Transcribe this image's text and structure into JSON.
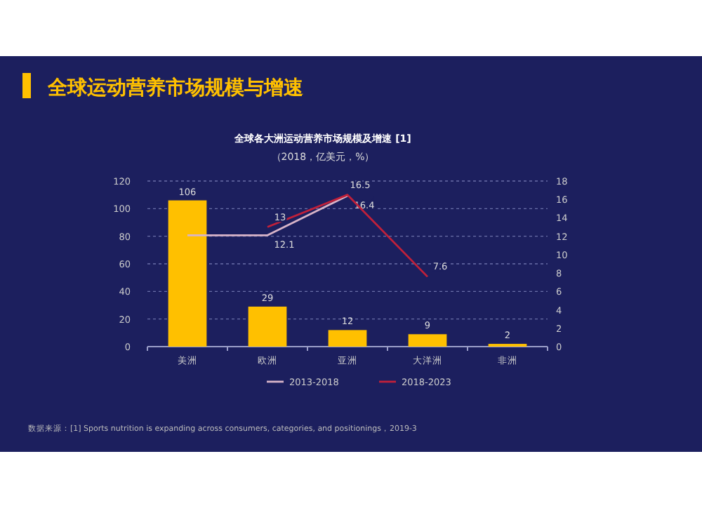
{
  "chart_data": {
    "type": "bar",
    "title": "全球运动营养市场规模与增速",
    "subtitle": "全球各大洲运动营养市场规模及增速 [1]",
    "ylabel": "（2018，亿美元，%）",
    "categories": [
      "美洲",
      "欧洲",
      "亚洲",
      "大洋洲",
      "非洲"
    ],
    "ylim": [
      0,
      120
    ],
    "yticks": [
      0,
      20,
      40,
      60,
      80,
      100,
      120
    ],
    "y2lim": [
      0,
      18
    ],
    "y2ticks": [
      0,
      2,
      4,
      6,
      8,
      10,
      12,
      14,
      16,
      18
    ],
    "grid": "y",
    "legend": "bottom",
    "data_labels": true,
    "series": [
      {
        "color": "#ffc000",
        "values": [
          106,
          29,
          12,
          9,
          2
        ]
      },
      {
        "type": "line",
        "axis": "y2",
        "name": "2013-2018",
        "color": "#d8b4c8",
        "values": [
          12.1,
          12.1,
          16.4,
          null,
          null
        ],
        "value_labels": [
          null,
          "12.1",
          "16.4",
          null,
          null
        ]
      },
      {
        "type": "line",
        "axis": "y2",
        "name": "2018-2023",
        "color": "#c0203a",
        "values": [
          null,
          13,
          16.5,
          7.6,
          null
        ],
        "value_labels": [
          null,
          "13",
          "16.5",
          "7.6",
          null
        ]
      }
    ],
    "annotations": [
      "数据来源：[1] Sports nutrition is expanding across consumers, categories, and positionings，2019-3"
    ]
  }
}
